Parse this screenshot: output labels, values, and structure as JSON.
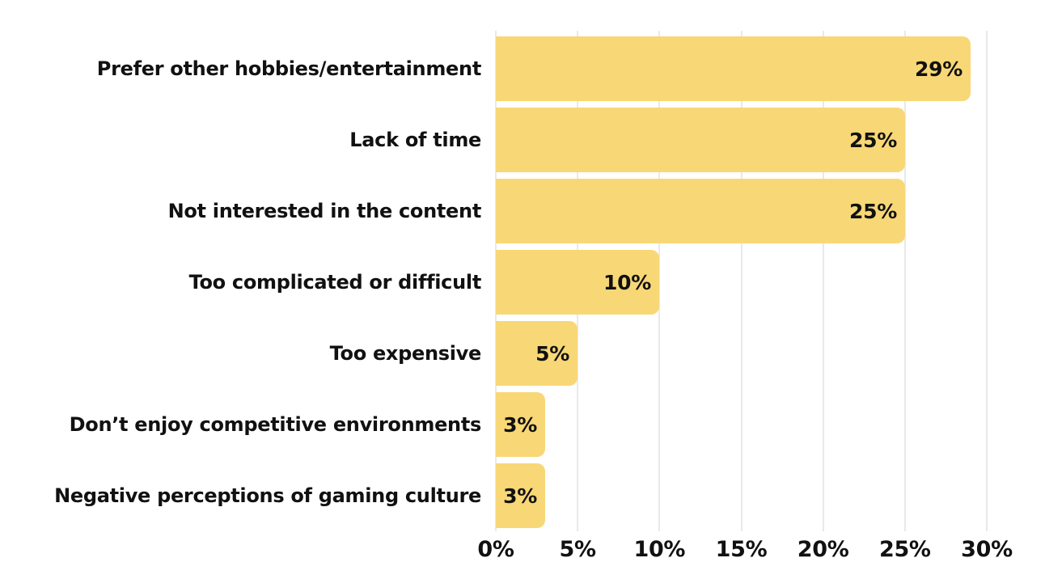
{
  "chart_data": {
    "type": "bar",
    "orientation": "horizontal",
    "title": "",
    "xlabel": "",
    "ylabel": "",
    "categories": [
      "Prefer other hobbies/entertainment",
      "Lack of time",
      "Not interested in the content",
      "Too complicated or difficult",
      "Too expensive",
      "Don’t enjoy competitive environments",
      "Negative perceptions of gaming culture"
    ],
    "values": [
      29,
      25,
      25,
      10,
      5,
      3,
      3
    ],
    "value_labels": [
      "29%",
      "25%",
      "25%",
      "10%",
      "5%",
      "3%",
      "3%"
    ],
    "xlim": [
      0,
      30
    ],
    "x_tick_values": [
      0,
      5,
      10,
      15,
      20,
      25,
      30
    ],
    "x_tick_labels": [
      "0%",
      "5%",
      "10%",
      "15%",
      "20%",
      "25%",
      "30%"
    ],
    "grid": "vertical-gridlines-on",
    "legend": "none",
    "colors": {
      "bar": "#F8D776",
      "text": "#111111",
      "gridline": "#E9E9E9",
      "background": "#FFFFFF"
    }
  }
}
